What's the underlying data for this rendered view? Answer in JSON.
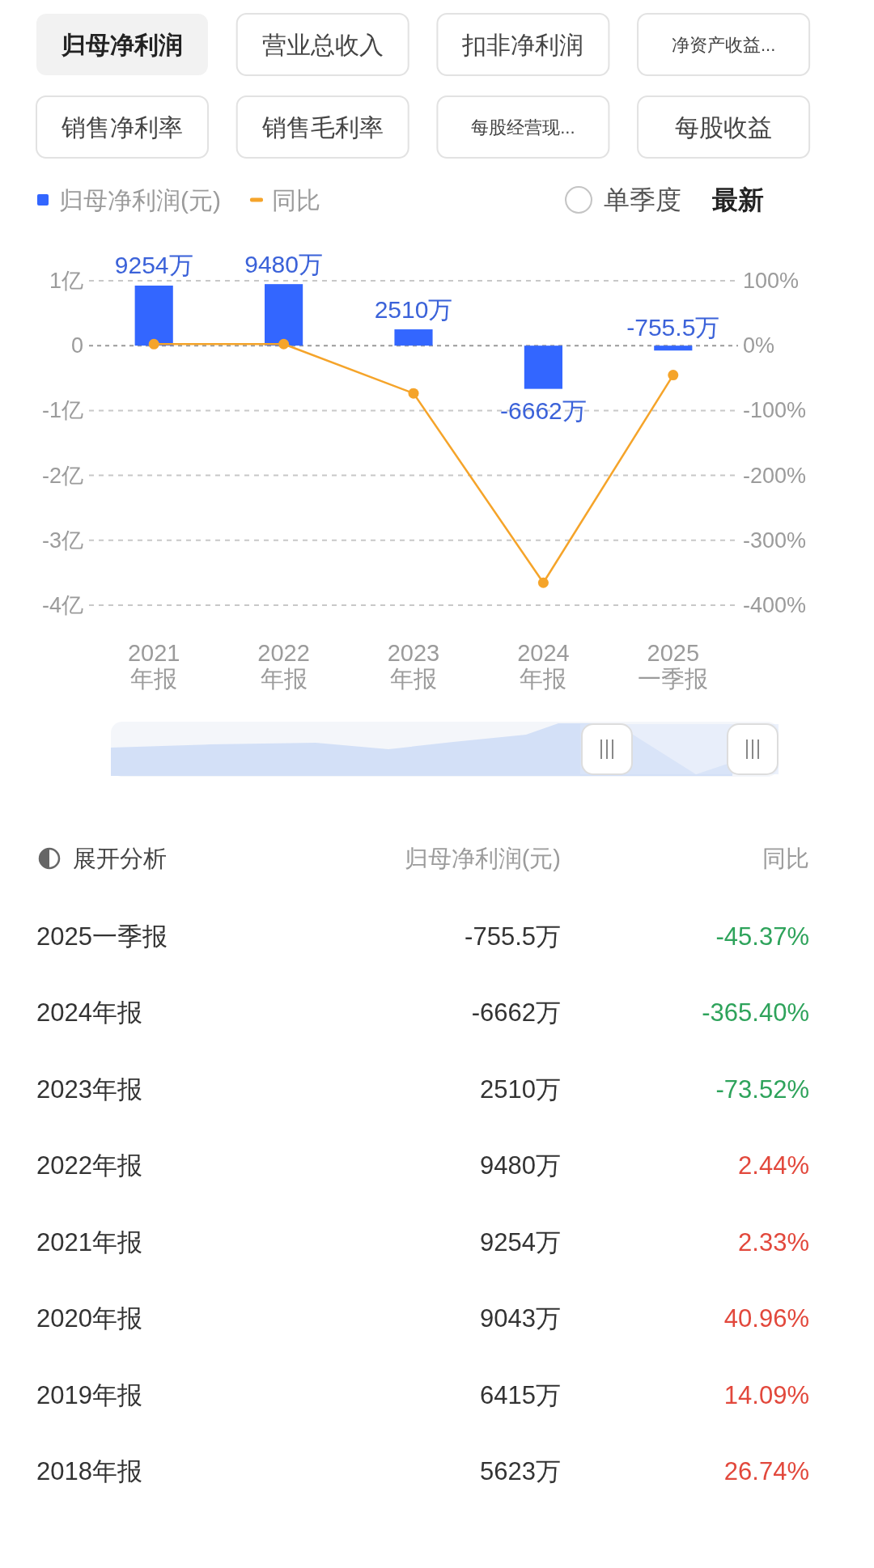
{
  "chart_data": [
    {
      "type": "other",
      "annotations": [
        "归母净利润",
        "营业总收入",
        "扣非净利润",
        "净资产收益...",
        "销售净利率",
        "销售毛利率",
        "每股经营现...",
        "每股收益"
      ]
    },
    {
      "type": "bar",
      "categories": [
        "2021\n年报",
        "2022\n年报",
        "2023\n年报",
        "2024\n年报",
        "2025\n一季报"
      ],
      "series": [
        {
          "name": "归母净利润(元)",
          "type": "bar",
          "color": "#3366ff",
          "values": [
            0.9254,
            0.948,
            0.251,
            -0.6662,
            -0.07555
          ]
        },
        {
          "name": "同比",
          "type": "line",
          "axis": "y2",
          "color": "#f5a42a",
          "marker": "circle",
          "values": [
            2.33,
            2.44,
            -73.52,
            -365.4,
            -45.37
          ]
        }
      ],
      "ylim": [
        -4,
        1
      ],
      "yticks": [
        {
          "value": 1,
          "label": "1亿"
        },
        0,
        {
          "value": -1,
          "label": "-1亿"
        },
        {
          "value": -2,
          "label": "-2亿"
        },
        {
          "value": -3,
          "label": "-3亿"
        },
        {
          "value": -4,
          "label": "-4亿"
        }
      ],
      "y2lim": [
        -400,
        100
      ],
      "y2ticks": [
        {
          "value": 100,
          "label": "100%"
        },
        {
          "value": 0,
          "label": "0%"
        },
        {
          "value": -100,
          "label": "-100%"
        },
        {
          "value": -200,
          "label": "-200%"
        },
        {
          "value": -300,
          "label": "-300%"
        },
        {
          "value": -400,
          "label": "-400%"
        }
      ],
      "ref_lines": [
        {
          "axis": "y",
          "value": 0,
          "color": "#9a9a9a",
          "line_style": "dashed"
        }
      ],
      "grid": "y",
      "legend": "top left",
      "annotations": [
        "单季度",
        "最新",
        {
          "text": "9254万",
          "x": "2021\n年报",
          "y": 0.9254
        },
        {
          "text": "9480万",
          "x": "2022\n年报",
          "y": 0.948
        },
        {
          "text": "2510万",
          "x": "2023\n年报",
          "y": 0.251
        },
        {
          "text": "-6662万",
          "x": "2024\n年报",
          "y": -0.6662
        },
        {
          "text": "-755.5万",
          "x": "2025\n一季报",
          "y": -0.07555
        }
      ]
    },
    {
      "type": "heatmap",
      "annotations": [
        "展开分析"
      ],
      "categories": [
        "归母净利润(元)",
        "同比"
      ],
      "y_categories": [
        "2025一季报",
        "2024年报",
        "2023年报",
        "2022年报",
        "2021年报",
        "2020年报",
        "2019年报",
        "2018年报"
      ],
      "cells": [
        [
          -755.5,
          -45.37
        ],
        [
          -6662,
          -365.4
        ],
        [
          2510,
          -73.52
        ],
        [
          9480,
          2.44
        ],
        [
          9254,
          2.33
        ],
        [
          9043,
          40.96
        ],
        [
          6415,
          14.09
        ],
        [
          5623,
          26.74
        ]
      ],
      "cell_labels": [
        [
          "-755.5万",
          "-45.37%"
        ],
        [
          "-6662万",
          "-365.40%"
        ],
        [
          "2510万",
          "-73.52%"
        ],
        [
          "9480万",
          "2.44%"
        ],
        [
          "9254万",
          "2.33%"
        ],
        [
          "9043万",
          "40.96%"
        ],
        [
          "6415万",
          "14.09%"
        ],
        [
          "5623万",
          "26.74%"
        ]
      ]
    }
  ]
}
